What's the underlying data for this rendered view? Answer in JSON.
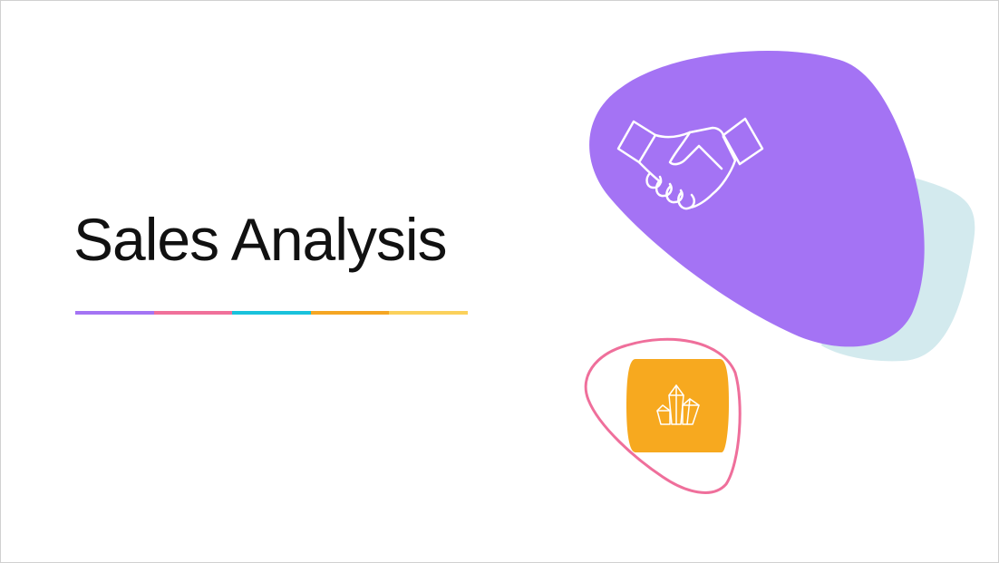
{
  "slide": {
    "title": "Sales Analysis",
    "underline_colors": [
      "#a474f4",
      "#f0709a",
      "#19c2dc",
      "#f5a623",
      "#fbd15b"
    ],
    "colors": {
      "purple_blob": "#a473f4",
      "teal_blob": "#d3eaee",
      "orange_square": "#f7a91f",
      "pink_outline": "#ef6f9b",
      "icon_stroke": "#ffffff"
    },
    "icons": [
      "handshake-icon",
      "crystal-icon"
    ]
  }
}
